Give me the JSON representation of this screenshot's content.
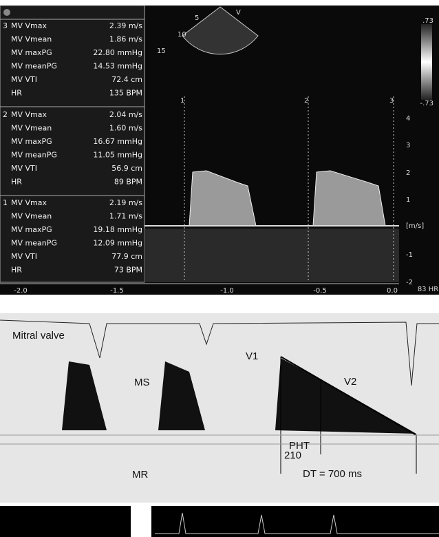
{
  "measurements": [
    {
      "index": "3",
      "rows": [
        {
          "label": "MV Vmax",
          "value": "2.39 m/s"
        },
        {
          "label": "MV Vmean",
          "value": "1.86 m/s"
        },
        {
          "label": "MV maxPG",
          "value": "22.80 mmHg"
        },
        {
          "label": "MV meanPG",
          "value": "14.53 mmHg"
        },
        {
          "label": "MV VTI",
          "value": "72.4 cm"
        },
        {
          "label": "HR",
          "value": "135 BPM"
        }
      ]
    },
    {
      "index": "2",
      "rows": [
        {
          "label": "MV Vmax",
          "value": "2.04 m/s"
        },
        {
          "label": "MV Vmean",
          "value": "1.60 m/s"
        },
        {
          "label": "MV maxPG",
          "value": "16.67 mmHg"
        },
        {
          "label": "MV meanPG",
          "value": "11.05 mmHg"
        },
        {
          "label": "MV VTI",
          "value": "56.9 cm"
        },
        {
          "label": "HR",
          "value": "89 BPM"
        }
      ]
    },
    {
      "index": "1",
      "rows": [
        {
          "label": "MV Vmax",
          "value": "2.19 m/s"
        },
        {
          "label": "MV Vmean",
          "value": "1.71 m/s"
        },
        {
          "label": "MV maxPG",
          "value": "19.18 mmHg"
        },
        {
          "label": "MV meanPG",
          "value": "12.09 mmHg"
        },
        {
          "label": "MV VTI",
          "value": "77.9 cm"
        },
        {
          "label": "HR",
          "value": "73 BPM"
        }
      ]
    }
  ],
  "sector": {
    "labels": [
      "5",
      "10",
      "15"
    ],
    "mode": "V"
  },
  "color_scale": {
    "top": ".73",
    "bottom": "-.73"
  },
  "velocity_scale": [
    "4",
    "3",
    "2",
    "1",
    "[m/s]",
    "-1",
    "-2"
  ],
  "cycle_markers": [
    "1",
    "2",
    "3"
  ],
  "time_axis": [
    "-2.0",
    "-1.5",
    "-1.0",
    "-0.5",
    "0.0"
  ],
  "hr_label": "83 HR",
  "annotations": {
    "mitral_valve": "Mitral valve",
    "ms": "MS",
    "mr": "MR",
    "v1": "V1",
    "v2": "V2",
    "pht": "PHT",
    "pht_value": "210",
    "dt": "DT = 700 ms"
  }
}
